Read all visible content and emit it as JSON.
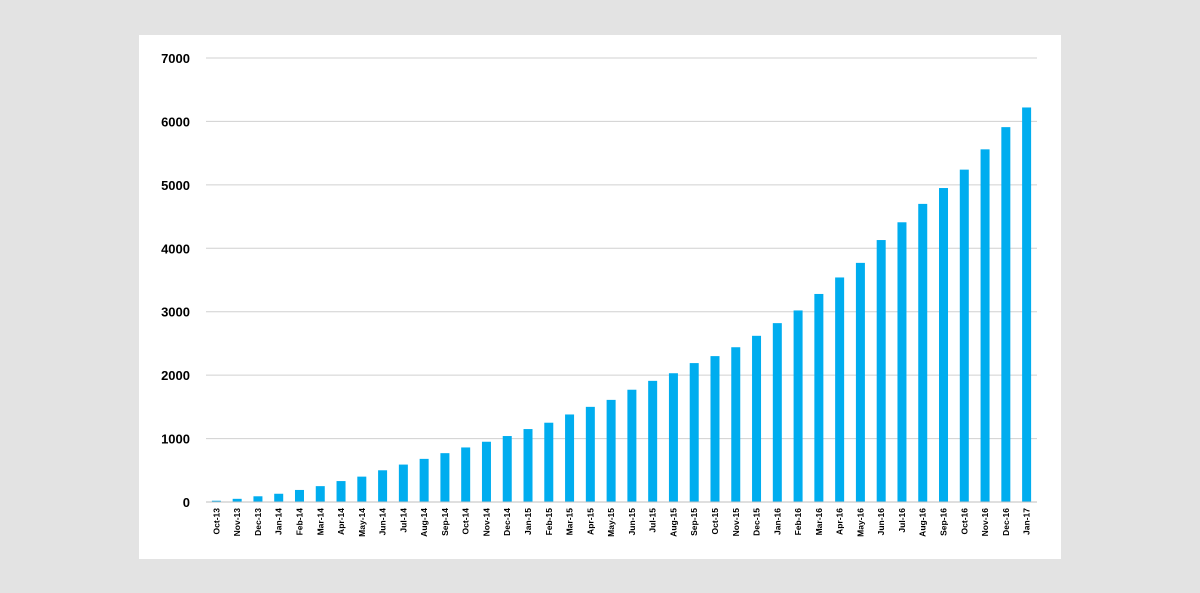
{
  "chart_data": {
    "type": "bar",
    "title": "",
    "xlabel": "",
    "ylabel": "",
    "ylim": [
      0,
      7000
    ],
    "yticks": [
      0,
      1000,
      2000,
      3000,
      4000,
      5000,
      6000,
      7000
    ],
    "grid": true,
    "legend": "none",
    "bar_color": "#00adef",
    "categories": [
      "Oct-13",
      "Nov-13",
      "Dec-13",
      "Jan-14",
      "Feb-14",
      "Mar-14",
      "Apr-14",
      "May-14",
      "Jun-14",
      "Jul-14",
      "Aug-14",
      "Sep-14",
      "Oct-14",
      "Nov-14",
      "Dec-14",
      "Jan-15",
      "Feb-15",
      "Mar-15",
      "Apr-15",
      "May-15",
      "Jun-15",
      "Jul-15",
      "Aug-15",
      "Sep-15",
      "Oct-15",
      "Nov-15",
      "Dec-15",
      "Jan-16",
      "Feb-16",
      "Mar-16",
      "Apr-16",
      "May-16",
      "Jun-16",
      "Jul-16",
      "Aug-16",
      "Sep-16",
      "Oct-16",
      "Nov-16",
      "Dec-16",
      "Jan-17"
    ],
    "values": [
      20,
      50,
      90,
      130,
      190,
      250,
      330,
      400,
      500,
      590,
      680,
      770,
      860,
      950,
      1040,
      1150,
      1250,
      1380,
      1500,
      1610,
      1770,
      1910,
      2030,
      2190,
      2300,
      2440,
      2620,
      2820,
      3020,
      3280,
      3540,
      3770,
      4130,
      4410,
      4700,
      4950,
      5240,
      5560,
      5910,
      6220
    ]
  }
}
